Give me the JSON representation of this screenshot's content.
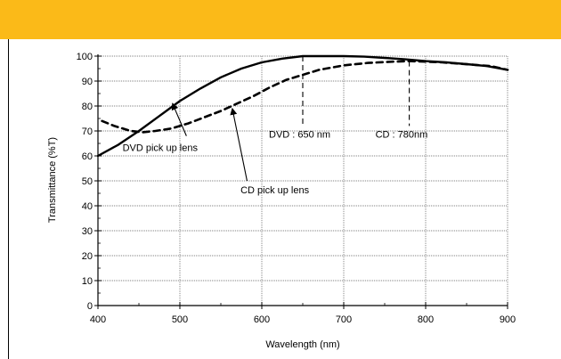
{
  "colors": {
    "band": "#FBBA18",
    "ink": "#000000"
  },
  "chart_data": {
    "type": "line",
    "xlabel": "Wavelength (nm)",
    "ylabel": "Transmittance (%T)",
    "xlim": [
      400,
      900
    ],
    "ylim": [
      0,
      100
    ],
    "xticks": [
      400,
      500,
      600,
      700,
      800,
      900
    ],
    "yticks": [
      0,
      10,
      20,
      30,
      40,
      50,
      60,
      70,
      80,
      90,
      100
    ],
    "grid": true,
    "series": [
      {
        "style": "solid",
        "x": [
          400,
          425,
          450,
          475,
          500,
          525,
          550,
          575,
          600,
          625,
          650,
          675,
          700,
          725,
          750,
          775,
          800,
          825,
          850,
          875,
          900
        ],
        "y": [
          60,
          64.5,
          70,
          76,
          82,
          87,
          91.5,
          95,
          97.5,
          99,
          100,
          100,
          100,
          99.8,
          99.3,
          98.7,
          98,
          97.5,
          96.8,
          96,
          94.5
        ]
      },
      {
        "style": "dashed",
        "x": [
          405,
          420,
          440,
          455,
          470,
          490,
          510,
          530,
          550,
          570,
          590,
          610,
          630,
          650,
          670,
          700,
          730,
          760,
          780,
          800,
          820,
          840,
          860,
          880,
          900
        ],
        "y": [
          74,
          72,
          70,
          69.5,
          70,
          71,
          73,
          75.5,
          78,
          81,
          84,
          87.5,
          90.5,
          92.5,
          94.5,
          96.3,
          97.3,
          97.8,
          98,
          97.8,
          97.5,
          97,
          96.5,
          96,
          94.5
        ]
      }
    ],
    "markers": [
      {
        "label": "DVD : 650 nm",
        "x": 650,
        "y_top": 100,
        "y_bottom": 72
      },
      {
        "label": "CD : 780nm",
        "x": 780,
        "y_top": 98,
        "y_bottom": 72
      }
    ],
    "annotations": [
      {
        "label": "DVD pick up lens",
        "text_x": 430,
        "text_y": 62,
        "arrow_from": [
          508,
          68
        ],
        "arrow_to": [
          491,
          81
        ]
      },
      {
        "label": "CD pick up lens",
        "text_x": 574,
        "text_y": 45,
        "arrow_from": [
          582,
          50
        ],
        "arrow_to": [
          564,
          79
        ]
      }
    ]
  }
}
